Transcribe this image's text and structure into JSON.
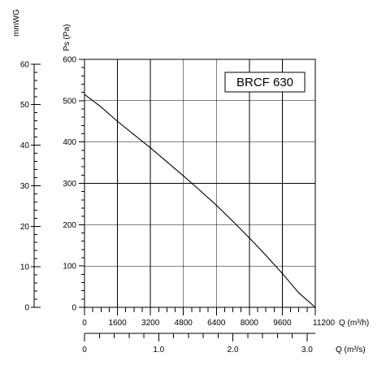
{
  "chart_data": {
    "type": "line",
    "title": "BRCF 630",
    "grid": true,
    "ylabel_primary": "Ps (Pa)",
    "ylabel_secondary": "mmWG",
    "xlabel_primary": "Q (m³/h)",
    "xlabel_secondary": "Q (m³/s)",
    "xlim": [
      0,
      11200
    ],
    "ylim": [
      0,
      600
    ],
    "y_ticks": [
      0,
      100,
      200,
      300,
      400,
      500,
      600
    ],
    "y_tick_labels": [
      "0",
      "100",
      "200",
      "300",
      "400",
      "500",
      "600"
    ],
    "y2_ticks": [
      0,
      10,
      20,
      30,
      40,
      50,
      60
    ],
    "y2_tick_labels": [
      "0",
      "10",
      "20",
      "30",
      "40",
      "50",
      "60"
    ],
    "x_ticks": [
      0,
      1600,
      3200,
      4800,
      6400,
      8000,
      9600,
      11200
    ],
    "x_tick_labels": [
      "0",
      "1600",
      "3200",
      "4800",
      "6400",
      "8000",
      "9600",
      "11200"
    ],
    "x2_ticks": [
      0,
      1.0,
      2.0,
      3.0
    ],
    "x2_tick_labels": [
      "0",
      "1.0",
      "2.0",
      "3.0"
    ],
    "series": [
      {
        "x": [
          0,
          800,
          1600,
          2400,
          3200,
          4000,
          4800,
          5600,
          6400,
          7200,
          8000,
          8800,
          9600,
          10400,
          11200
        ],
        "y": [
          515,
          485,
          450,
          418,
          386,
          352,
          318,
          283,
          247,
          208,
          168,
          126,
          82,
          35,
          0
        ]
      }
    ]
  }
}
